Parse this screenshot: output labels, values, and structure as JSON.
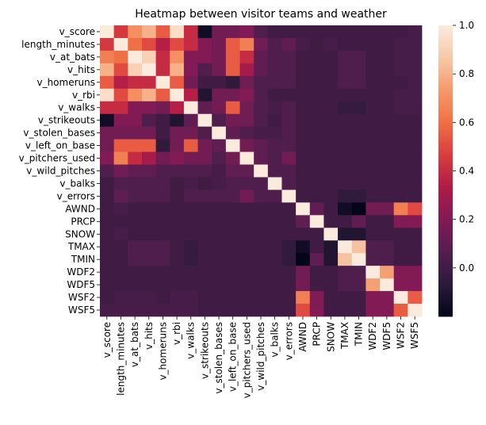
{
  "chart_data": {
    "type": "heatmap",
    "title": "Heatmap between visitor teams and weather",
    "labels": [
      "v_score",
      "length_minutes",
      "v_at_bats",
      "v_hits",
      "v_homeruns",
      "v_rbi",
      "v_walks",
      "v_strikeouts",
      "v_stolen_bases",
      "v_left_on_base",
      "v_pitchers_used",
      "v_wild_pitches",
      "v_balks",
      "v_errors",
      "AWND",
      "PRCP",
      "SNOW",
      "TMAX",
      "TMIN",
      "WDF2",
      "WDF5",
      "WSF2",
      "WSF5"
    ],
    "matrix": [
      [
        1.0,
        0.45,
        0.7,
        0.8,
        0.55,
        0.95,
        0.4,
        -0.15,
        0.15,
        0.15,
        0.2,
        0.05,
        0.0,
        0.0,
        0.0,
        0.0,
        0.0,
        0.0,
        0.0,
        0.0,
        0.0,
        0.0,
        0.02
      ],
      [
        0.45,
        1.0,
        0.6,
        0.5,
        0.35,
        0.5,
        0.4,
        0.2,
        0.15,
        0.55,
        0.65,
        0.15,
        0.05,
        0.1,
        0.02,
        0.0,
        0.02,
        0.0,
        0.0,
        0.0,
        0.0,
        0.02,
        0.02
      ],
      [
        0.65,
        0.6,
        1.0,
        0.9,
        0.4,
        0.7,
        0.2,
        0.2,
        0.15,
        0.55,
        0.4,
        0.1,
        0.05,
        0.05,
        0.0,
        0.0,
        0.0,
        0.05,
        0.05,
        0.0,
        0.0,
        0.02,
        0.02
      ],
      [
        0.8,
        0.5,
        0.9,
        1.0,
        0.4,
        0.8,
        0.2,
        0.05,
        0.15,
        0.55,
        0.3,
        0.1,
        0.05,
        0.05,
        0.0,
        0.0,
        0.0,
        0.05,
        0.05,
        0.0,
        0.0,
        0.02,
        0.02
      ],
      [
        0.55,
        0.35,
        0.4,
        0.4,
        1.0,
        0.55,
        0.15,
        0.0,
        0.0,
        -0.05,
        0.15,
        0.05,
        0.05,
        0.05,
        0.0,
        0.0,
        0.0,
        0.05,
        0.05,
        0.0,
        0.0,
        0.0,
        0.02
      ],
      [
        0.95,
        0.5,
        0.7,
        0.8,
        0.55,
        1.0,
        0.35,
        -0.1,
        0.15,
        0.15,
        0.2,
        0.05,
        0.0,
        0.0,
        0.0,
        0.0,
        0.0,
        0.0,
        0.0,
        0.0,
        0.0,
        0.02,
        0.02
      ],
      [
        0.4,
        0.4,
        0.2,
        0.2,
        0.15,
        0.35,
        1.0,
        0.1,
        0.15,
        0.55,
        0.15,
        0.05,
        0.02,
        0.05,
        0.0,
        0.0,
        0.0,
        -0.03,
        -0.03,
        0.0,
        0.0,
        0.02,
        0.02
      ],
      [
        -0.15,
        0.2,
        0.2,
        0.05,
        0.0,
        -0.1,
        0.1,
        1.0,
        0.05,
        0.15,
        0.15,
        0.05,
        0.0,
        0.05,
        0.0,
        0.0,
        0.0,
        0.0,
        0.0,
        0.0,
        0.0,
        0.0,
        0.0
      ],
      [
        0.15,
        0.15,
        0.15,
        0.15,
        0.0,
        0.15,
        0.15,
        0.05,
        1.0,
        0.1,
        0.05,
        0.02,
        0.02,
        0.05,
        0.0,
        0.0,
        0.0,
        0.0,
        0.0,
        0.0,
        0.0,
        0.0,
        0.0
      ],
      [
        0.15,
        0.55,
        0.55,
        0.55,
        -0.05,
        0.15,
        0.55,
        0.15,
        0.1,
        1.0,
        0.15,
        0.1,
        0.05,
        0.05,
        0.0,
        0.0,
        0.0,
        0.0,
        0.0,
        0.0,
        0.0,
        0.0,
        0.0
      ],
      [
        0.2,
        0.65,
        0.4,
        0.3,
        0.15,
        0.2,
        0.15,
        0.15,
        0.05,
        0.15,
        1.0,
        0.1,
        0.05,
        0.15,
        0.0,
        0.0,
        0.0,
        0.0,
        0.0,
        0.0,
        0.0,
        0.0,
        0.0
      ],
      [
        0.05,
        0.15,
        0.1,
        0.1,
        0.05,
        0.05,
        0.05,
        0.05,
        0.02,
        0.1,
        0.1,
        1.0,
        0.05,
        0.05,
        0.0,
        0.0,
        0.0,
        0.0,
        0.0,
        0.0,
        0.0,
        0.0,
        0.0
      ],
      [
        0.0,
        0.05,
        0.05,
        0.05,
        0.05,
        0.0,
        0.02,
        0.0,
        0.02,
        0.05,
        0.05,
        0.05,
        1.0,
        0.05,
        0.0,
        0.0,
        0.0,
        0.0,
        0.0,
        0.0,
        0.0,
        0.0,
        0.0
      ],
      [
        0.0,
        0.1,
        0.05,
        0.05,
        0.05,
        0.0,
        0.05,
        0.05,
        0.05,
        0.05,
        0.15,
        0.05,
        0.05,
        1.0,
        0.0,
        0.0,
        0.0,
        -0.05,
        -0.05,
        0.0,
        0.0,
        0.0,
        0.0
      ],
      [
        0.0,
        0.02,
        0.0,
        0.0,
        0.0,
        0.0,
        0.0,
        0.0,
        0.0,
        0.0,
        0.0,
        0.0,
        0.0,
        0.0,
        1.0,
        0.1,
        0.0,
        -0.15,
        -0.2,
        0.15,
        0.15,
        0.65,
        0.5
      ],
      [
        0.0,
        0.0,
        0.0,
        0.0,
        0.0,
        0.0,
        0.0,
        0.0,
        0.0,
        0.0,
        0.0,
        0.0,
        0.0,
        0.0,
        0.1,
        1.0,
        0.0,
        0.0,
        0.1,
        0.0,
        0.0,
        0.2,
        0.2
      ],
      [
        0.0,
        0.02,
        0.0,
        0.0,
        0.0,
        0.0,
        0.0,
        0.0,
        0.0,
        0.0,
        0.0,
        0.0,
        0.0,
        0.0,
        0.0,
        0.0,
        1.0,
        -0.1,
        -0.1,
        0.0,
        0.0,
        0.0,
        0.0
      ],
      [
        0.0,
        0.0,
        0.05,
        0.05,
        0.05,
        0.0,
        -0.03,
        0.0,
        0.0,
        0.0,
        0.0,
        0.0,
        0.0,
        -0.05,
        -0.15,
        0.0,
        -0.1,
        1.0,
        0.85,
        0.05,
        0.05,
        0.0,
        0.0
      ],
      [
        0.0,
        0.0,
        0.05,
        0.05,
        0.05,
        0.0,
        -0.03,
        0.0,
        0.0,
        0.0,
        0.0,
        0.0,
        0.0,
        -0.05,
        -0.2,
        0.1,
        -0.1,
        0.85,
        1.0,
        0.05,
        0.05,
        0.0,
        0.0
      ],
      [
        0.0,
        0.0,
        0.0,
        0.0,
        0.0,
        0.0,
        0.0,
        0.0,
        0.0,
        0.0,
        0.0,
        0.0,
        0.0,
        0.0,
        0.15,
        0.0,
        0.0,
        0.05,
        0.05,
        1.0,
        0.75,
        0.2,
        0.2
      ],
      [
        0.0,
        0.0,
        0.0,
        0.0,
        0.0,
        0.0,
        0.0,
        0.0,
        0.0,
        0.0,
        0.0,
        0.0,
        0.0,
        0.0,
        0.15,
        0.0,
        0.0,
        0.05,
        0.05,
        0.75,
        1.0,
        0.2,
        0.2
      ],
      [
        0.0,
        0.02,
        0.02,
        0.02,
        0.0,
        0.02,
        0.02,
        0.0,
        0.0,
        0.0,
        0.0,
        0.0,
        0.0,
        0.0,
        0.65,
        0.2,
        0.0,
        0.0,
        0.0,
        0.2,
        0.2,
        1.0,
        0.55
      ],
      [
        0.02,
        0.02,
        0.02,
        0.02,
        0.02,
        0.02,
        0.02,
        0.0,
        0.0,
        0.0,
        0.0,
        0.0,
        0.0,
        0.0,
        0.5,
        0.2,
        0.0,
        0.0,
        0.0,
        0.2,
        0.2,
        0.55,
        1.0
      ]
    ],
    "colorbar": {
      "vmin": -0.2,
      "vmax": 1.0,
      "ticks": [
        "1.0",
        "0.8",
        "0.6",
        "0.4",
        "0.2",
        "0.0"
      ],
      "tick_values": [
        1.0,
        0.8,
        0.6,
        0.4,
        0.2,
        0.0
      ],
      "colormap": "rocket",
      "stops": [
        "#03051a",
        "#2b1a3a",
        "#541e50",
        "#821a55",
        "#b01b48",
        "#da3d3f",
        "#f06f45",
        "#f59a6a",
        "#f8c8a8",
        "#faebdd"
      ]
    },
    "grid": false
  }
}
